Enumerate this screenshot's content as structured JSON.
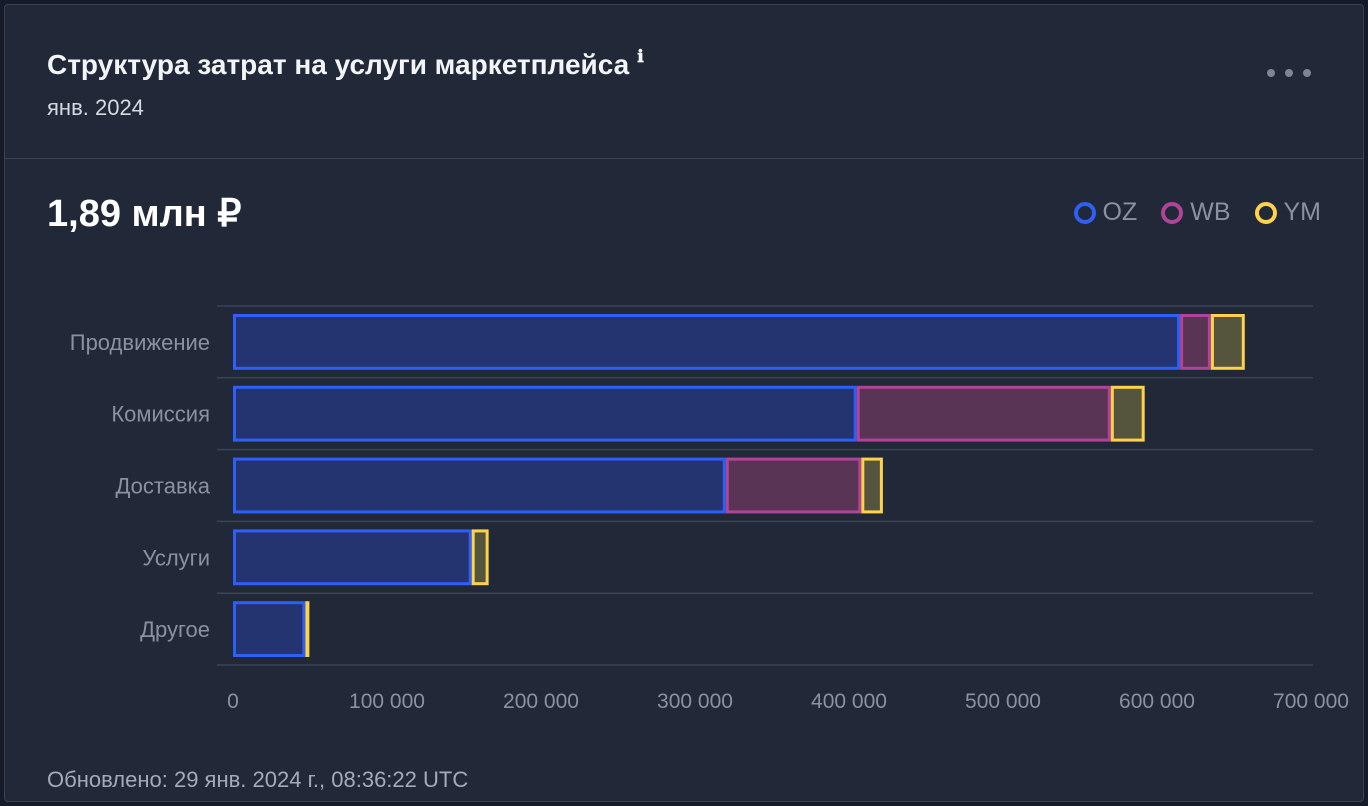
{
  "header": {
    "title": "Структура затрат на услуги маркетплейса",
    "info_icon": "info-icon",
    "subtitle": "янв. 2024",
    "menu_icon": "more-horizontal-icon"
  },
  "summary": {
    "total": "1,89 млн ₽"
  },
  "legend": [
    {
      "name": "OZ",
      "color": "#2f5ff5"
    },
    {
      "name": "WB",
      "color": "#b0449a"
    },
    {
      "name": "YM",
      "color": "#ffd24a"
    }
  ],
  "chart_data": {
    "type": "bar",
    "orientation": "horizontal",
    "stacked": true,
    "categories": [
      "Продвижение",
      "Комиссия",
      "Доставка",
      "Услуги",
      "Другое"
    ],
    "series": [
      {
        "name": "OZ",
        "values": [
          615000,
          405000,
          320000,
          155000,
          47000
        ]
      },
      {
        "name": "WB",
        "values": [
          20000,
          165000,
          88000,
          0,
          0
        ]
      },
      {
        "name": "YM",
        "values": [
          22000,
          22000,
          14000,
          11000,
          2000
        ]
      }
    ],
    "xlim": [
      0,
      700000
    ],
    "xticks": [
      "0",
      "100 000",
      "200 000",
      "300 000",
      "400 000",
      "500 000",
      "600 000",
      "700 000"
    ],
    "grid": true,
    "legend_position": "top-right"
  },
  "footer": {
    "updated": "Обновлено: 29 янв. 2024 г., 08:36:22 UTC"
  }
}
